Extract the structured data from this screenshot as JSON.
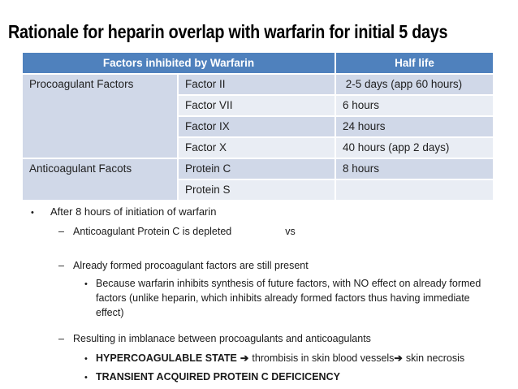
{
  "slide": {
    "title": "Rationale for heparin overlap with warfarin for initial 5 days"
  },
  "colors": {
    "header_bg": "#4f81bd",
    "header_text": "#ffffff",
    "band_dark": "#d0d8e8",
    "band_light": "#e9edf4",
    "title_text": "#000000"
  },
  "table": {
    "header": {
      "factors_col": "Factors inhibited by Warfarin",
      "halflife_col": "Half life"
    },
    "groups": [
      {
        "label": "Procoagulant Factors",
        "rows": [
          {
            "factor": "Factor II",
            "half_life": " 2-5 days (app 60 hours)"
          },
          {
            "factor": "Factor VII",
            "half_life": "6 hours"
          },
          {
            "factor": "Factor IX",
            "half_life": "24 hours"
          },
          {
            "factor": "Factor X",
            "half_life": "40 hours (app 2 days)"
          }
        ]
      },
      {
        "label": "Anticoagulant Facots",
        "rows": [
          {
            "factor": "Protein C",
            "half_life": "8 hours"
          },
          {
            "factor": "Protein S",
            "half_life": ""
          }
        ]
      }
    ]
  },
  "markers": {
    "dot": "•",
    "dash": "–",
    "arrow": "➔"
  },
  "bullets": {
    "after_8_hours": "After 8 hours of initiation of warfarin",
    "protein_c_depleted": "Anticoagulant Protein C is depleted",
    "vs": "vs",
    "already_formed": "Already formed procoagulant factors are still present",
    "because_warfarin": "Because warfarin inhibits synthesis of future factors, with NO effect on already formed factors (unlike heparin, which inhibits already formed factors thus having immediate effect)",
    "resulting_imbalance": "Resulting in imblanace between procoagulants and anticoagulants",
    "hypercoagulable_state": "HYPERCOAGULABLE STATE",
    "thrombisis": "thrombisis in skin blood vessels",
    "skin_necrosis": "skin necrosis",
    "transient_deficiency": "TRANSIENT ACQUIRED PROTEIN C DEFICICENCY"
  }
}
